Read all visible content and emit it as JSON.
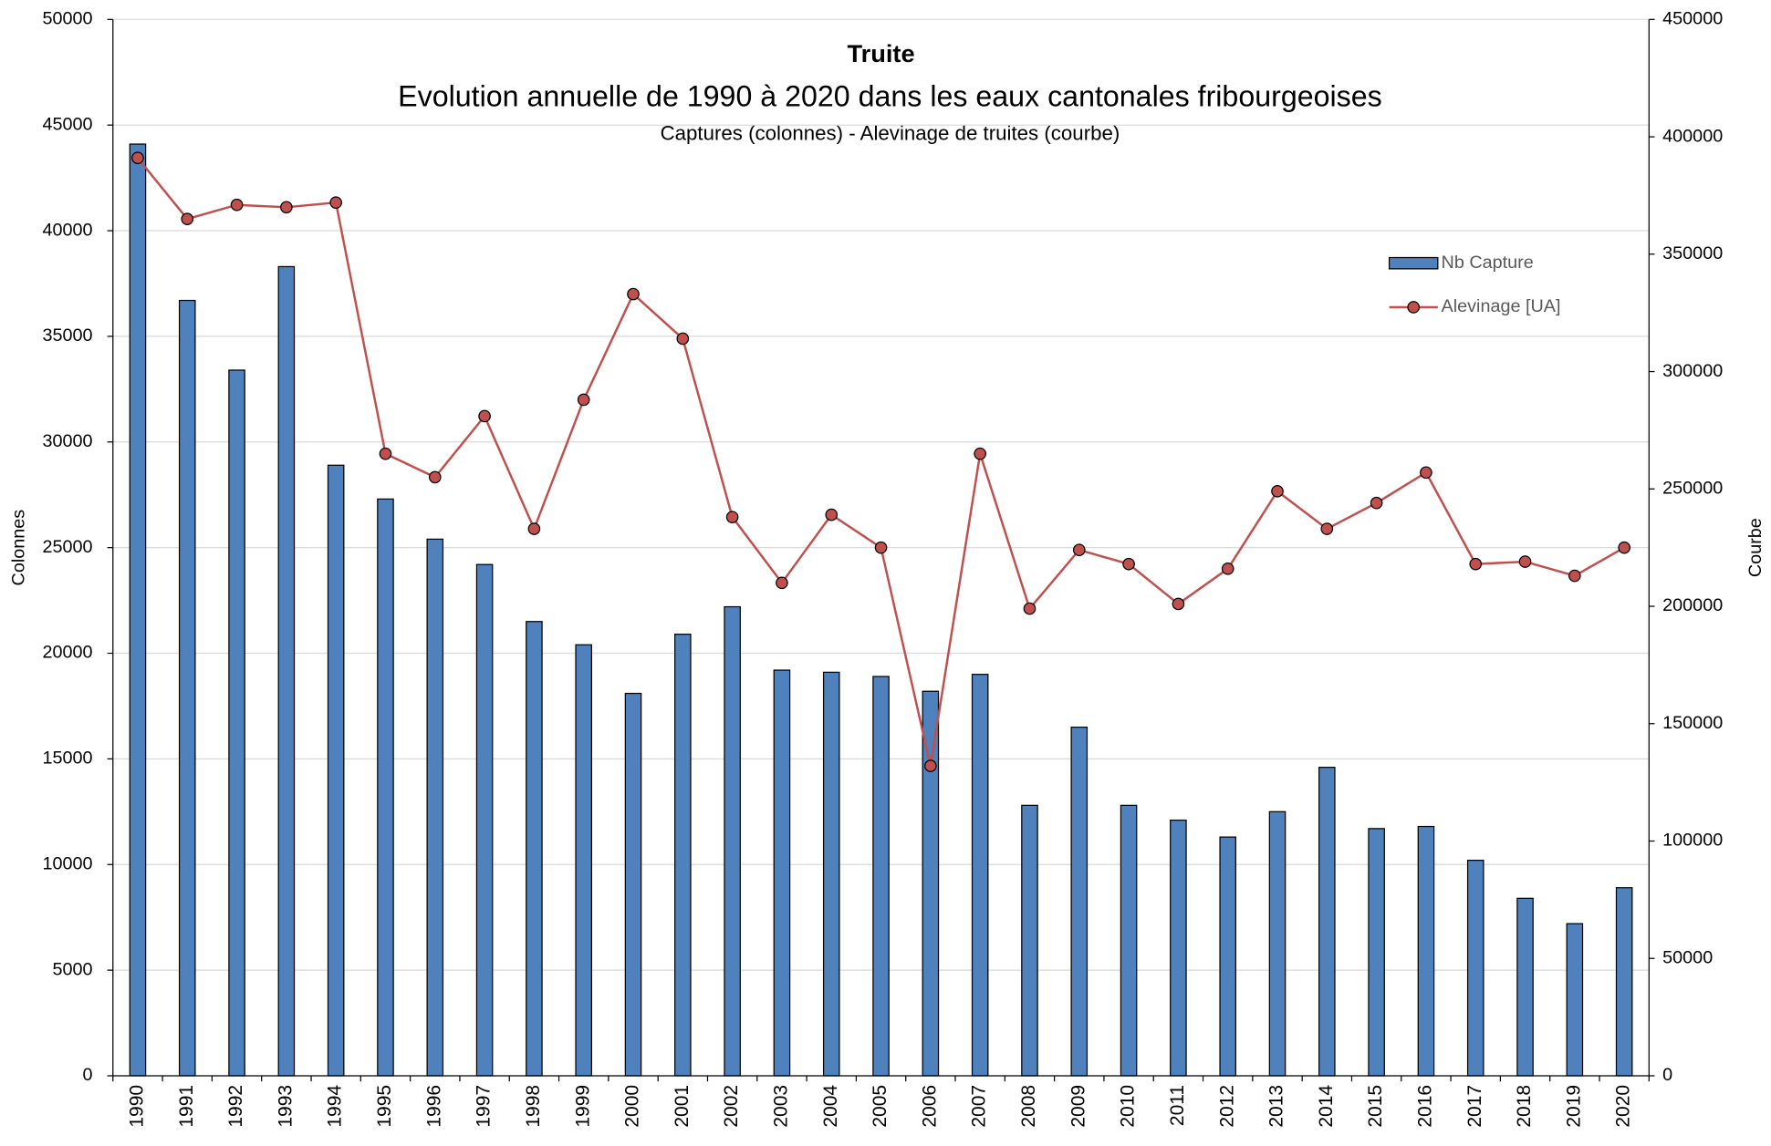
{
  "chart_data": {
    "type": "bar_line",
    "title": "Truite",
    "subtitle": "Evolution annuelle de 1990 à 2020 dans les eaux cantonales fribourgeoises",
    "note": "Captures (colonnes) - Alevinage de truites (courbe)",
    "ylabel": "Colonnes",
    "y2label": "Courbe",
    "categories": [
      "1990",
      "1991",
      "1992",
      "1993",
      "1994",
      "1995",
      "1996",
      "1997",
      "1998",
      "1999",
      "2000",
      "2001",
      "2002",
      "2003",
      "2004",
      "2005",
      "2006",
      "2007",
      "2008",
      "2009",
      "2010",
      "2011",
      "2012",
      "2013",
      "2014",
      "2015",
      "2016",
      "2017",
      "2018",
      "2019",
      "2020"
    ],
    "series": [
      {
        "name": "Nb Capture",
        "type": "bar",
        "color": "#4f81bd",
        "axis": "y",
        "values": [
          44100,
          36700,
          33400,
          38300,
          28900,
          27300,
          25400,
          24200,
          21500,
          20400,
          18100,
          20900,
          22200,
          19200,
          19100,
          18900,
          18200,
          19000,
          12800,
          16500,
          12800,
          12100,
          11300,
          12500,
          14600,
          11700,
          11800,
          10200,
          8400,
          7200,
          8900
        ]
      },
      {
        "name": "Alevinage [UA]",
        "type": "line",
        "color": "#c0504d",
        "axis": "y2",
        "values": [
          391000,
          365000,
          371000,
          370000,
          372000,
          265000,
          255000,
          281000,
          233000,
          288000,
          333000,
          314000,
          238000,
          210000,
          239000,
          225000,
          132000,
          265000,
          199000,
          224000,
          218000,
          201000,
          216000,
          249000,
          233000,
          244000,
          257000,
          218000,
          219000,
          213000,
          225000
        ]
      }
    ],
    "ylim": [
      0,
      50000
    ],
    "yticks": [
      0,
      5000,
      10000,
      15000,
      20000,
      25000,
      30000,
      35000,
      40000,
      45000,
      50000
    ],
    "y2lim": [
      0,
      450000
    ],
    "y2ticks": [
      0,
      50000,
      100000,
      150000,
      200000,
      250000,
      300000,
      350000,
      400000,
      450000
    ],
    "grid": true,
    "legend": "upper right"
  }
}
